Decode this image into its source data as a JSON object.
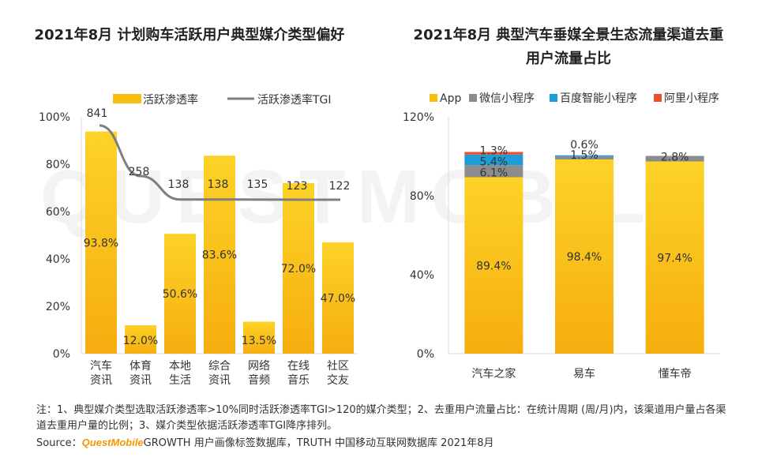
{
  "watermark": "QUESTMOBILE",
  "chart_data": [
    {
      "type": "bar",
      "title": "2021年8月 计划购车活跃用户典型媒介类型偏好",
      "categories": [
        [
          "汽车",
          "资讯"
        ],
        [
          "体育",
          "资讯"
        ],
        [
          "本地",
          "生活"
        ],
        [
          "综合",
          "资讯"
        ],
        [
          "网络",
          "音频"
        ],
        [
          "在线",
          "音乐"
        ],
        [
          "社区",
          "交友"
        ]
      ],
      "series": [
        {
          "name": "活跃渗透率",
          "kind": "bar",
          "color": "#f9bf0f",
          "values": [
            93.8,
            12.0,
            50.6,
            83.6,
            13.5,
            72.0,
            47.0
          ],
          "labels": [
            "93.8%",
            "12.0%",
            "50.6%",
            "83.6%",
            "13.5%",
            "72.0%",
            "47.0%"
          ]
        },
        {
          "name": "活跃渗透率TGI",
          "kind": "line",
          "color": "#7f7f7f",
          "values": [
            841,
            258,
            138,
            138,
            135,
            123,
            122
          ]
        }
      ],
      "ylim": [
        0,
        100
      ],
      "yticks": [
        0,
        20,
        40,
        60,
        80,
        100
      ],
      "ytick_labels": [
        "0%",
        "20%",
        "40%",
        "60%",
        "80%",
        "100%"
      ],
      "legend_position": "top"
    },
    {
      "type": "stacked-bar",
      "title": "2021年8月 典型汽车垂媒全景生态流量渠道去重用户流量占比",
      "categories": [
        "汽车之家",
        "易车",
        "懂车帝"
      ],
      "series": [
        {
          "name": "App",
          "color": "#f9bf0f",
          "values": [
            89.4,
            98.4,
            97.4
          ],
          "labels": [
            "89.4%",
            "98.4%",
            "97.4%"
          ]
        },
        {
          "name": "微信小程序",
          "color": "#8c8c8c",
          "values": [
            6.1,
            1.5,
            2.8
          ],
          "labels": [
            "6.1%",
            "1.5%",
            "2.8%"
          ]
        },
        {
          "name": "百度智能小程序",
          "color": "#1f9bd6",
          "values": [
            5.4,
            0.6,
            0
          ],
          "labels": [
            "5.4%",
            "0.6%",
            ""
          ]
        },
        {
          "name": "阿里小程序",
          "color": "#e8502e",
          "values": [
            1.3,
            0,
            0
          ],
          "labels": [
            "1.3%",
            "",
            ""
          ]
        }
      ],
      "ylim": [
        0,
        120
      ],
      "yticks": [
        0,
        40,
        80,
        120
      ],
      "ytick_labels": [
        "0%",
        "40%",
        "80%",
        "120%"
      ],
      "legend_position": "top"
    }
  ],
  "footnote": "注：1、典型媒介类型选取活跃渗透率>10%同时活跃渗透率TGI>120的媒介类型；2、去重用户流量占比：在统计周期 (周/月)内，该渠道用户量占各渠道去重用户量的比例；3、媒介类型依据活跃渗透率TGI降序排列。",
  "source": {
    "prefix": "Source：",
    "brand": "QuestMobile",
    "text": "GROWTH 用户画像标签数据库，TRUTH 中国移动互联网数据库 2021年8月"
  }
}
